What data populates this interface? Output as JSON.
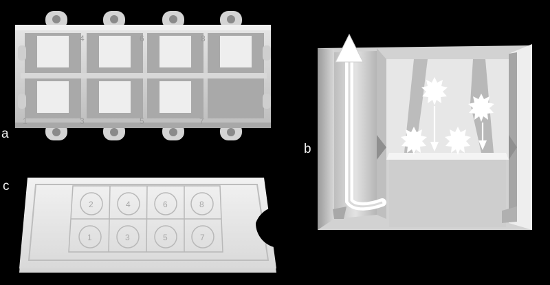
{
  "panels": {
    "a": {
      "label": "a",
      "top_numbers": [
        "",
        "4",
        "6",
        "8"
      ],
      "bottom_numbers": [
        "1",
        "3",
        "5",
        "7"
      ]
    },
    "b": {
      "label": "b"
    },
    "c": {
      "label": "c",
      "top_numbers": [
        "2",
        "4",
        "6",
        "8"
      ],
      "bottom_numbers": [
        "1",
        "3",
        "5",
        "7"
      ]
    }
  },
  "colors": {
    "background": "#000000",
    "model_light": "#ececec",
    "model_mid": "#cfcfcf",
    "model_dark": "#9c9c9c",
    "arrow": "#ffffff"
  }
}
